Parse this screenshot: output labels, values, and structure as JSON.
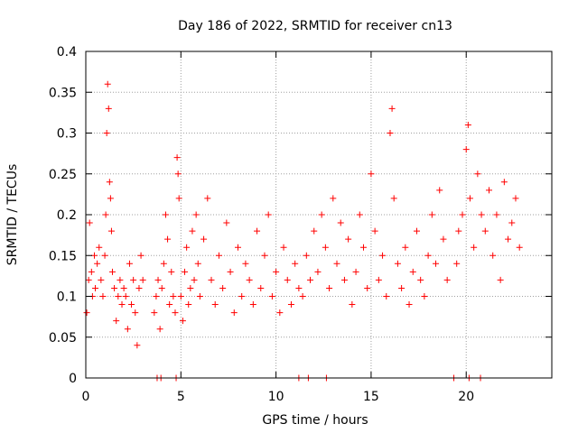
{
  "chart_data": {
    "type": "scatter",
    "title": "Day 186 of 2022, SRMTID for receiver cn13",
    "xlabel": "GPS time / hours",
    "ylabel": "SRMTID / TECUs",
    "xlim": [
      0,
      24.5
    ],
    "ylim": [
      0,
      0.4
    ],
    "xticks": [
      0,
      5,
      10,
      15,
      20
    ],
    "xtick_labels": [
      "0",
      "5",
      "10",
      "15",
      "20"
    ],
    "yticks": [
      0,
      0.05,
      0.1,
      0.15,
      0.2,
      0.25,
      0.3,
      0.35,
      0.4
    ],
    "ytick_labels": [
      "0",
      "0.05",
      "0.1",
      "0.15",
      "0.2",
      "0.25",
      "0.3",
      "0.35",
      "0.4"
    ],
    "grid": true,
    "marker": "+",
    "color": "#ff0000",
    "series": [
      {
        "name": "SRMTID",
        "x": [
          0.05,
          0.15,
          0.2,
          0.3,
          0.35,
          0.45,
          0.5,
          0.6,
          0.7,
          0.8,
          0.9,
          1.0,
          1.05,
          1.1,
          1.15,
          1.2,
          1.25,
          1.3,
          1.35,
          1.4,
          1.5,
          1.6,
          1.7,
          1.8,
          1.9,
          2.0,
          2.1,
          2.2,
          2.3,
          2.4,
          2.5,
          2.6,
          2.7,
          2.8,
          2.9,
          3.0,
          3.6,
          3.7,
          3.8,
          3.9,
          4.0,
          4.1,
          4.2,
          4.3,
          4.4,
          4.5,
          4.6,
          4.7,
          4.8,
          4.85,
          4.9,
          5.0,
          5.1,
          5.2,
          5.3,
          5.4,
          5.5,
          5.6,
          5.7,
          5.8,
          5.9,
          6.0,
          6.2,
          6.4,
          6.6,
          6.8,
          7.0,
          7.2,
          7.4,
          7.6,
          7.8,
          8.0,
          8.2,
          8.4,
          8.6,
          8.8,
          9.0,
          9.2,
          9.4,
          9.6,
          9.8,
          10.0,
          10.2,
          10.4,
          10.6,
          10.8,
          11.0,
          11.2,
          11.4,
          11.6,
          11.8,
          12.0,
          12.2,
          12.4,
          12.6,
          12.8,
          13.0,
          13.2,
          13.4,
          13.6,
          13.8,
          14.0,
          14.2,
          14.4,
          14.6,
          14.8,
          15.0,
          15.2,
          15.4,
          15.6,
          15.8,
          16.0,
          16.1,
          16.2,
          16.4,
          16.6,
          16.8,
          17.0,
          17.2,
          17.4,
          17.6,
          17.8,
          18.0,
          18.2,
          18.4,
          18.6,
          18.8,
          19.0,
          19.5,
          19.6,
          19.8,
          20.0,
          20.1,
          20.2,
          20.4,
          20.6,
          20.8,
          21.0,
          21.2,
          21.4,
          21.6,
          21.8,
          22.0,
          22.2,
          22.4,
          22.6,
          22.8,
          3.75,
          3.95,
          4.75,
          11.2,
          11.7,
          12.65,
          19.35,
          20.15,
          20.75
        ],
        "y": [
          0.08,
          0.12,
          0.19,
          0.13,
          0.1,
          0.15,
          0.11,
          0.14,
          0.16,
          0.12,
          0.1,
          0.15,
          0.2,
          0.3,
          0.36,
          0.33,
          0.24,
          0.22,
          0.18,
          0.13,
          0.11,
          0.07,
          0.1,
          0.12,
          0.09,
          0.11,
          0.1,
          0.06,
          0.14,
          0.09,
          0.12,
          0.08,
          0.04,
          0.11,
          0.15,
          0.12,
          0.08,
          0.1,
          0.12,
          0.06,
          0.11,
          0.14,
          0.2,
          0.17,
          0.09,
          0.13,
          0.1,
          0.08,
          0.27,
          0.25,
          0.22,
          0.1,
          0.07,
          0.13,
          0.16,
          0.09,
          0.11,
          0.18,
          0.12,
          0.2,
          0.14,
          0.1,
          0.17,
          0.22,
          0.12,
          0.09,
          0.15,
          0.11,
          0.19,
          0.13,
          0.08,
          0.16,
          0.1,
          0.14,
          0.12,
          0.09,
          0.18,
          0.11,
          0.15,
          0.2,
          0.1,
          0.13,
          0.08,
          0.16,
          0.12,
          0.09,
          0.14,
          0.11,
          0.1,
          0.15,
          0.12,
          0.18,
          0.13,
          0.2,
          0.16,
          0.11,
          0.22,
          0.14,
          0.19,
          0.12,
          0.17,
          0.09,
          0.13,
          0.2,
          0.16,
          0.11,
          0.25,
          0.18,
          0.12,
          0.15,
          0.1,
          0.3,
          0.33,
          0.22,
          0.14,
          0.11,
          0.16,
          0.09,
          0.13,
          0.18,
          0.12,
          0.1,
          0.15,
          0.2,
          0.14,
          0.23,
          0.17,
          0.12,
          0.14,
          0.18,
          0.2,
          0.28,
          0.31,
          0.22,
          0.16,
          0.25,
          0.2,
          0.18,
          0.23,
          0.15,
          0.2,
          0.12,
          0.24,
          0.17,
          0.19,
          0.22,
          0.16,
          0,
          0,
          0,
          0,
          0,
          0,
          0,
          0,
          0
        ]
      }
    ]
  }
}
